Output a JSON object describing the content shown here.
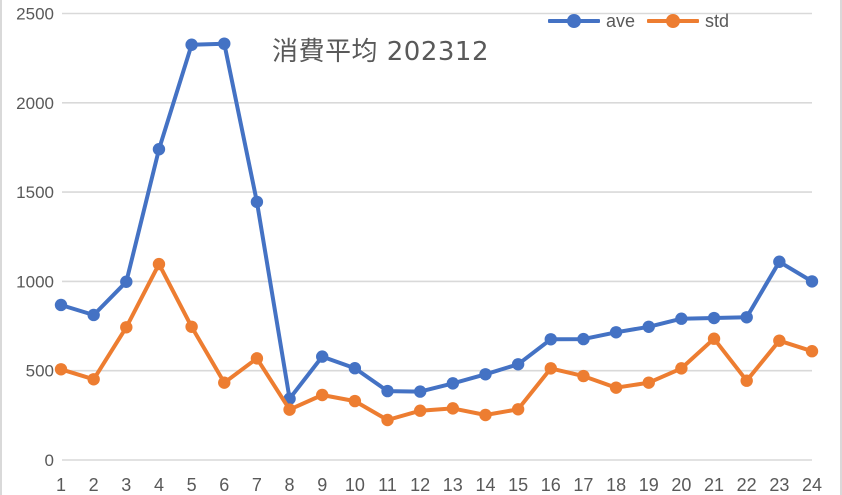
{
  "chart_data": {
    "type": "line",
    "title": "消費平均 202312",
    "xlabel": "",
    "ylabel": "",
    "categories": [
      "1",
      "2",
      "3",
      "4",
      "5",
      "6",
      "7",
      "8",
      "9",
      "10",
      "11",
      "12",
      "13",
      "14",
      "15",
      "16",
      "17",
      "18",
      "19",
      "20",
      "21",
      "22",
      "23",
      "24"
    ],
    "series": [
      {
        "name": "ave",
        "color": "#4472C4",
        "values": [
          868,
          812,
          998,
          1740,
          2325,
          2331,
          1445,
          343,
          579,
          514,
          386,
          383,
          429,
          480,
          536,
          676,
          677,
          715,
          746,
          791,
          795,
          799,
          1110,
          1000
        ]
      },
      {
        "name": "std",
        "color": "#ED7D31",
        "values": [
          508,
          452,
          743,
          1097,
          746,
          433,
          569,
          282,
          364,
          330,
          224,
          276,
          289,
          252,
          284,
          513,
          470,
          405,
          433,
          513,
          679,
          444,
          668,
          609
        ]
      }
    ],
    "ylim": [
      0,
      2500
    ],
    "yticks": [
      0,
      500,
      1000,
      1500,
      2000,
      2500
    ],
    "grid": true,
    "legend_position": "top-right"
  },
  "colors": {
    "text": "#595959",
    "grid": "#D9D9D9",
    "frame": "#D9D9D9"
  }
}
